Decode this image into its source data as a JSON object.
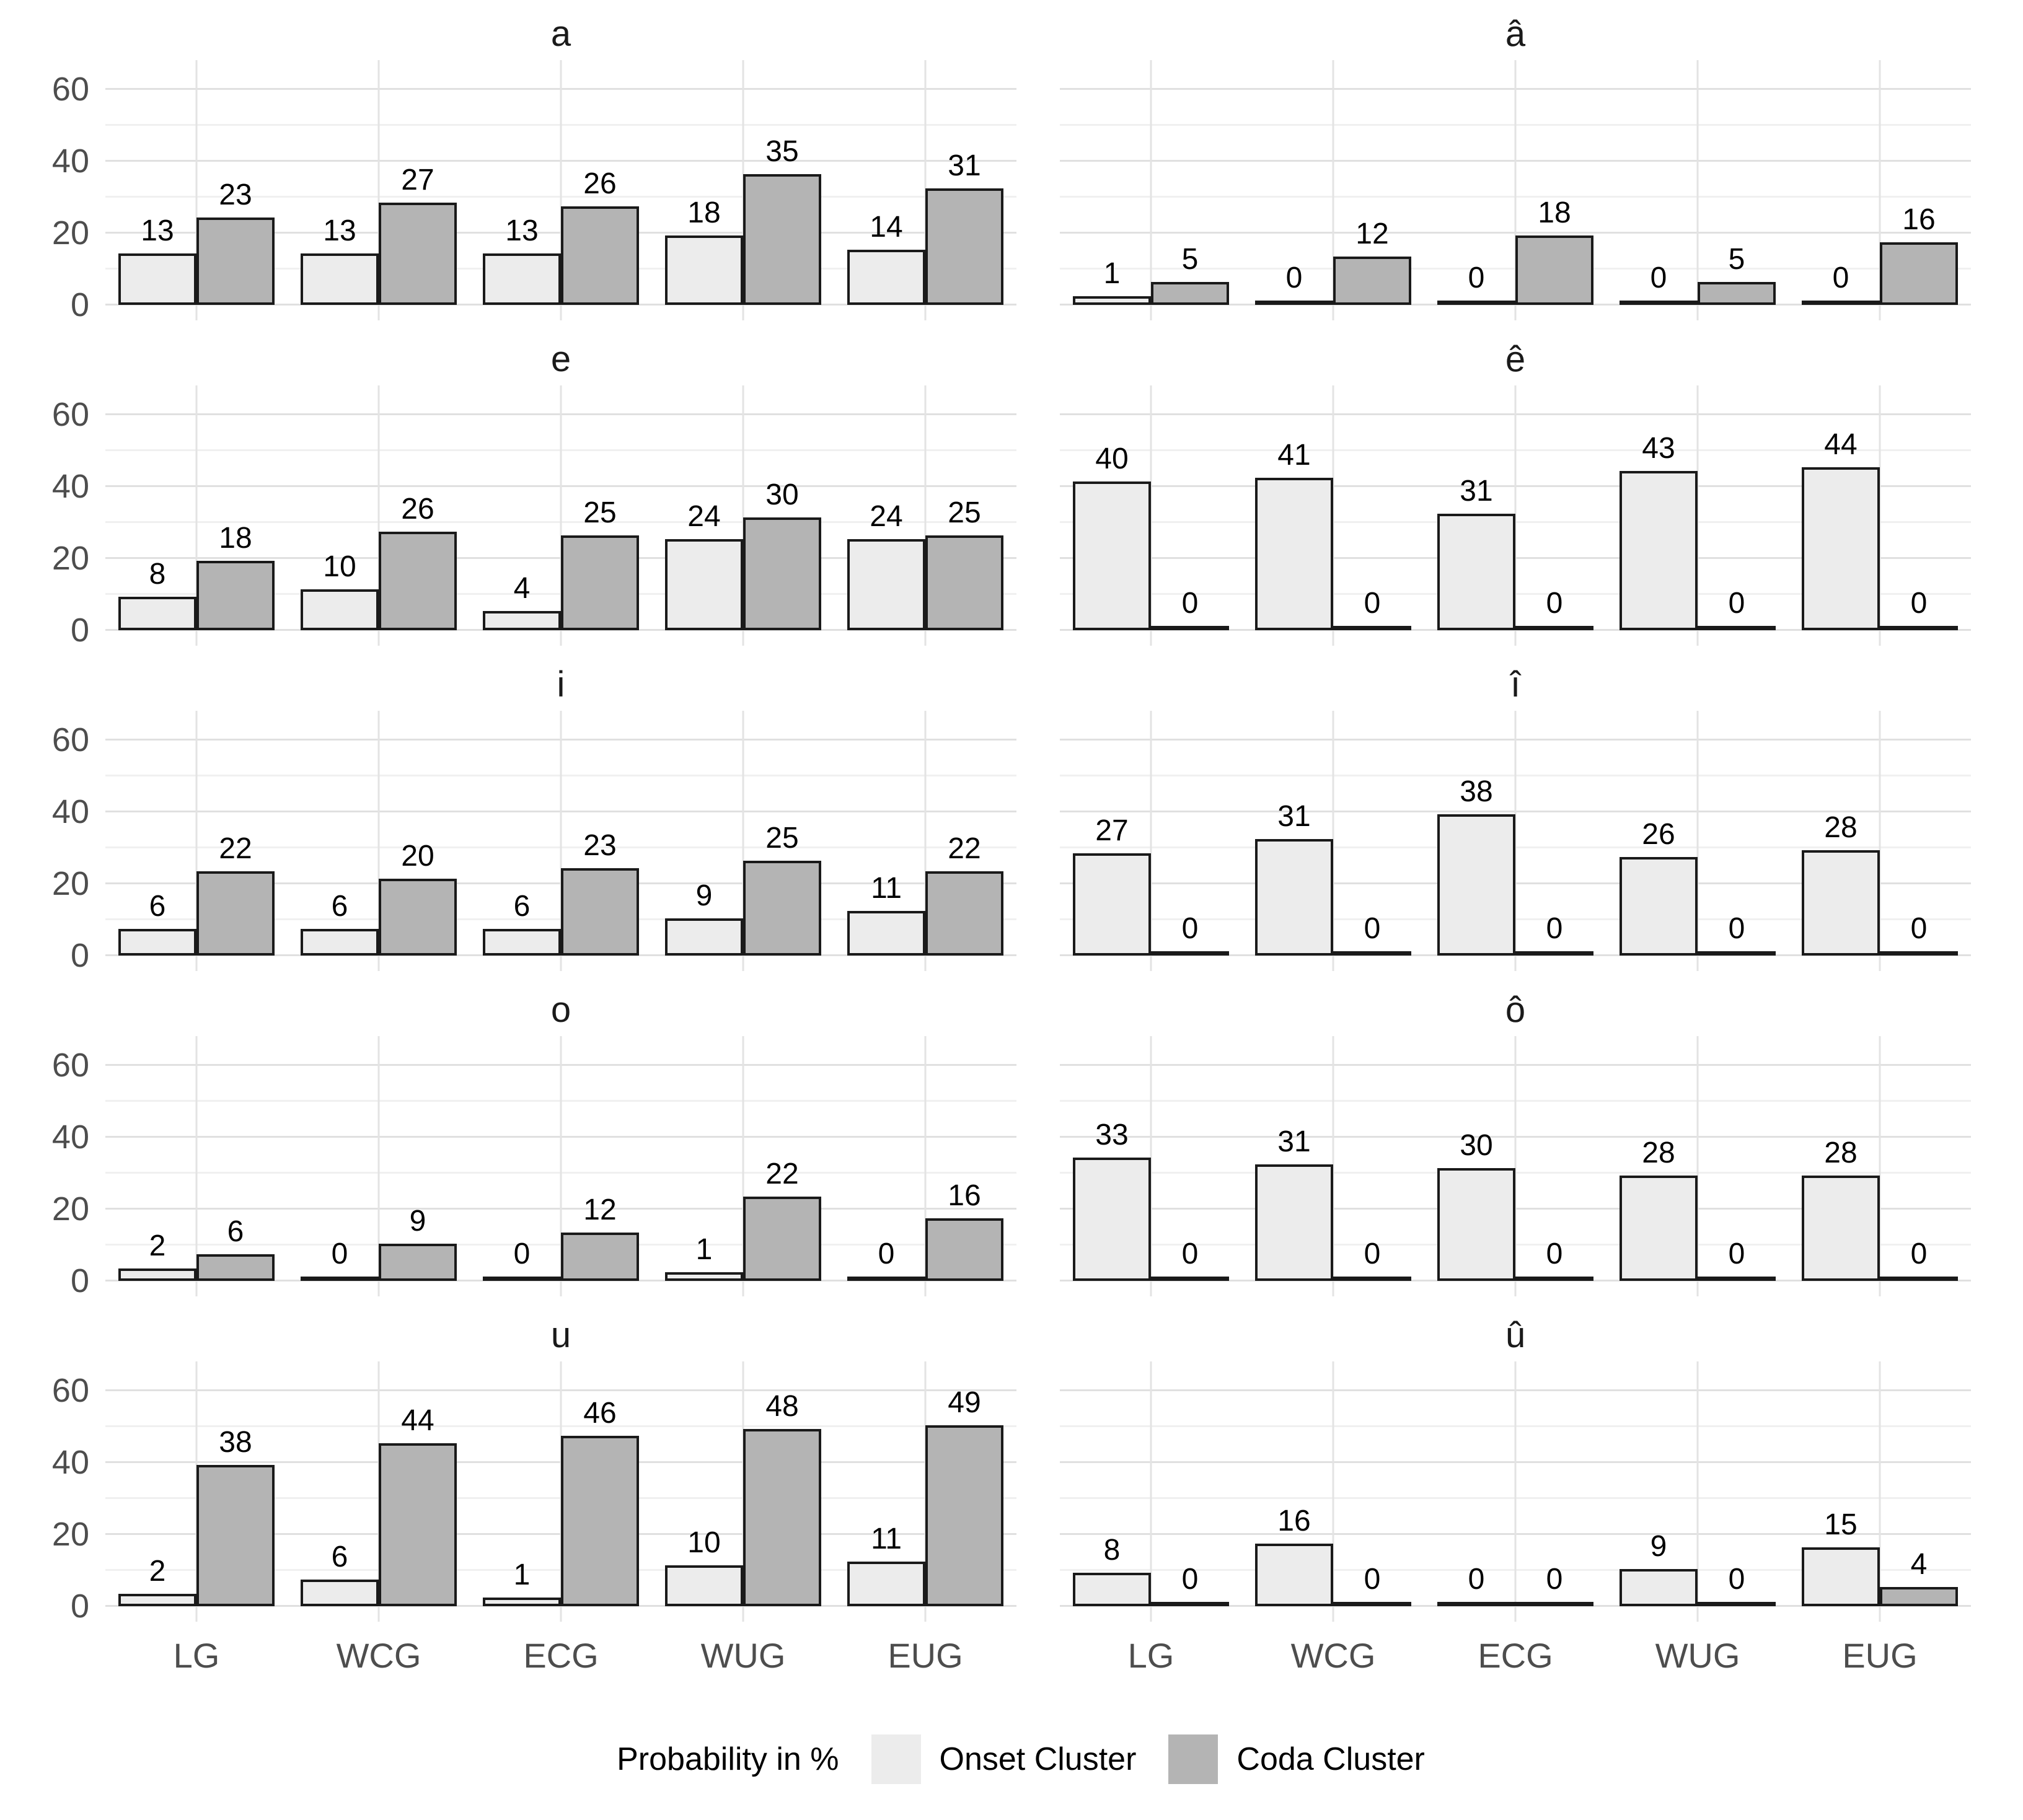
{
  "chart_data": {
    "type": "bar",
    "layout": "facet-grid-5x2",
    "legend_title": "Probability in %",
    "legend_position": "bottom",
    "categories": [
      "LG",
      "WCG",
      "ECG",
      "WUG",
      "EUG"
    ],
    "y_ticks": [
      "0",
      "20",
      "40",
      "60"
    ],
    "ylim": [
      0,
      60
    ],
    "grid": true,
    "series_meta": [
      {
        "name": "Onset Cluster",
        "color": "#ececec"
      },
      {
        "name": "Coda Cluster",
        "color": "#b4b4b4"
      }
    ],
    "bar_outline_color": "#1a1a1a",
    "facets": [
      {
        "title": "a",
        "onset": [
          13,
          13,
          13,
          18,
          14
        ],
        "coda": [
          23,
          27,
          26,
          35,
          31
        ]
      },
      {
        "title": "â",
        "onset": [
          1,
          0,
          0,
          0,
          0
        ],
        "coda": [
          5,
          12,
          18,
          5,
          16
        ]
      },
      {
        "title": "e",
        "onset": [
          8,
          10,
          4,
          24,
          24
        ],
        "coda": [
          18,
          26,
          25,
          30,
          25
        ]
      },
      {
        "title": "ê",
        "onset": [
          40,
          41,
          31,
          43,
          44
        ],
        "coda": [
          0,
          0,
          0,
          0,
          0
        ]
      },
      {
        "title": "i",
        "onset": [
          6,
          6,
          6,
          9,
          11
        ],
        "coda": [
          22,
          20,
          23,
          25,
          22
        ]
      },
      {
        "title": "î",
        "onset": [
          27,
          31,
          38,
          26,
          28
        ],
        "coda": [
          0,
          0,
          0,
          0,
          0
        ]
      },
      {
        "title": "o",
        "onset": [
          2,
          0,
          0,
          1,
          0
        ],
        "coda": [
          6,
          9,
          12,
          22,
          16
        ]
      },
      {
        "title": "ô",
        "onset": [
          33,
          31,
          30,
          28,
          28
        ],
        "coda": [
          0,
          0,
          0,
          0,
          0
        ]
      },
      {
        "title": "u",
        "onset": [
          2,
          6,
          1,
          10,
          11
        ],
        "coda": [
          38,
          44,
          46,
          48,
          49
        ]
      },
      {
        "title": "û",
        "onset": [
          8,
          16,
          0,
          9,
          15
        ],
        "coda": [
          0,
          0,
          0,
          0,
          4
        ]
      }
    ]
  }
}
